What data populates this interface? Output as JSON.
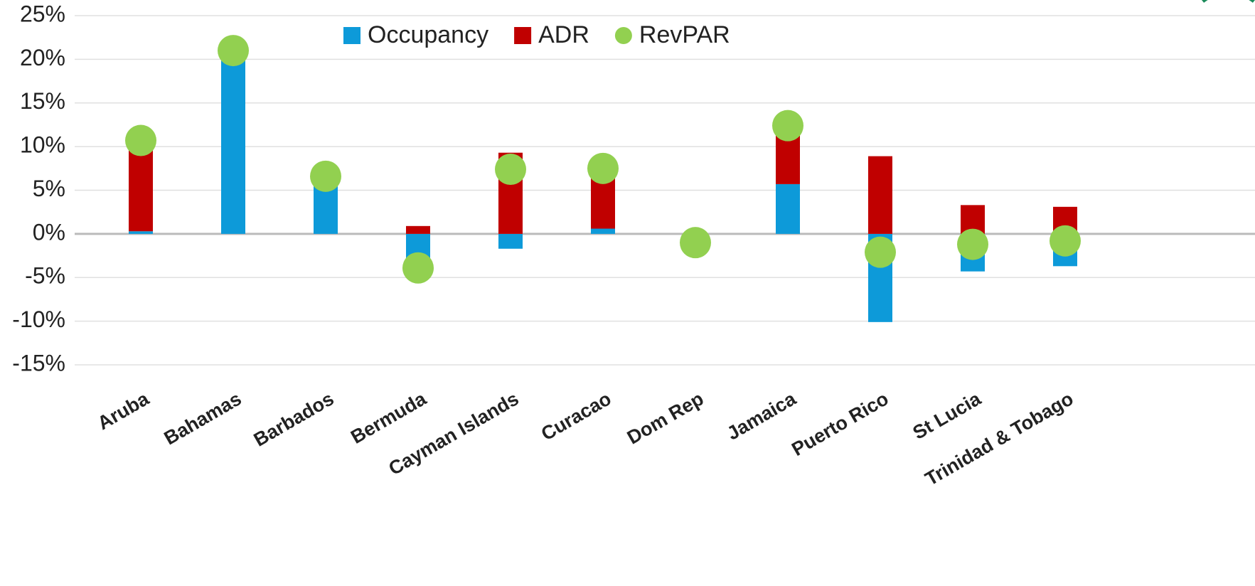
{
  "chart_data": {
    "type": "bar",
    "categories": [
      "Aruba",
      "Bahamas",
      "Barbados",
      "Bermuda",
      "Cayman Islands",
      "Curacao",
      "Dom Rep",
      "Jamaica",
      "Puerto Rico",
      "St Lucia",
      "Trinidad & Tobago"
    ],
    "series": [
      {
        "name": "Occupancy",
        "color": "#0d9ad9",
        "kind": "bar",
        "values": [
          0.3,
          20.5,
          5.5,
          -4.5,
          -1.7,
          0.6,
          -0.5,
          5.7,
          -10.1,
          -4.3,
          -3.7
        ]
      },
      {
        "name": "ADR",
        "color": "#c00000",
        "kind": "bar",
        "values": [
          9.5,
          0.3,
          1.0,
          0.9,
          9.3,
          6.7,
          -0.5,
          6.3,
          8.9,
          3.3,
          3.1
        ]
      },
      {
        "name": "RevPAR",
        "color": "#92d050",
        "kind": "dot",
        "values": [
          10.7,
          21.0,
          6.6,
          -3.9,
          7.4,
          7.5,
          -1.0,
          12.4,
          -2.1,
          -1.2,
          -0.8
        ]
      }
    ],
    "stacked": true,
    "ylim": [
      -15,
      25
    ],
    "yticks": [
      {
        "value": -15,
        "label": "-15%"
      },
      {
        "value": -10,
        "label": "-10%"
      },
      {
        "value": -5,
        "label": "-5%"
      },
      {
        "value": 0,
        "label": "0%"
      },
      {
        "value": 5,
        "label": "5%"
      },
      {
        "value": 10,
        "label": "10%"
      },
      {
        "value": 15,
        "label": "15%"
      },
      {
        "value": 20,
        "label": "20%"
      },
      {
        "value": 25,
        "label": "25%"
      }
    ],
    "grid": true,
    "legend": "top"
  }
}
